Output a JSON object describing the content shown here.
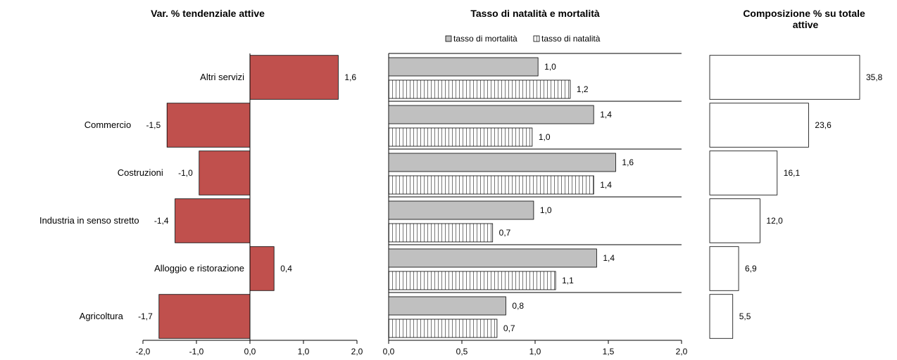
{
  "chart_data": [
    {
      "type": "bar",
      "orientation": "horizontal",
      "title": "Var. % tendenziale attive",
      "categories": [
        "Altri servizi",
        "Commercio",
        "Costruzioni",
        "Industria in senso stretto",
        "Alloggio e ristorazione",
        "Agricoltura"
      ],
      "values": [
        1.65,
        -1.55,
        -0.95,
        -1.4,
        0.45,
        -1.7
      ],
      "value_labels": [
        "1,6",
        "-1,5",
        "-1,0",
        "-1,4",
        "0,4",
        "-1,7"
      ],
      "xlim": [
        -2.0,
        2.0
      ],
      "ticks": [
        -2.0,
        -1.0,
        0.0,
        1.0,
        2.0
      ],
      "tick_labels": [
        "-2,0",
        "-1,0",
        "0,0",
        "1,0",
        "2,0"
      ],
      "grid": false,
      "color": "#c0504d"
    },
    {
      "type": "bar",
      "orientation": "horizontal",
      "title": "Tasso di natalità e mortalità",
      "categories": [
        "Altri servizi",
        "Commercio",
        "Costruzioni",
        "Industria in senso stretto",
        "Alloggio e ristorazione",
        "Agricoltura"
      ],
      "series": [
        {
          "name": "tasso di mortalità",
          "values": [
            1.02,
            1.4,
            1.55,
            0.99,
            1.42,
            0.8
          ],
          "labels": [
            "1,0",
            "1,4",
            "1,6",
            "1,0",
            "1,4",
            "0,8"
          ],
          "fill": "#c0c0c0"
        },
        {
          "name": "tasso di natalità",
          "values": [
            1.24,
            0.98,
            1.4,
            0.71,
            1.14,
            0.74
          ],
          "labels": [
            "1,2",
            "1,0",
            "1,4",
            "0,7",
            "1,1",
            "0,7"
          ],
          "fill": "vertical-stripes"
        }
      ],
      "xlim": [
        0.0,
        2.0
      ],
      "ticks": [
        0.0,
        0.5,
        1.0,
        1.5,
        2.0
      ],
      "tick_labels": [
        "0,0",
        "0,5",
        "1,0",
        "1,5",
        "2,0"
      ],
      "legend": "top",
      "grid": "horizontal category separators"
    },
    {
      "type": "bar",
      "orientation": "horizontal",
      "title": "Composizione % su totale attive",
      "categories": [
        "Altri servizi",
        "Commercio",
        "Costruzioni",
        "Industria in senso stretto",
        "Alloggio e ristorazione",
        "Agricoltura"
      ],
      "values": [
        35.8,
        23.6,
        16.1,
        12.0,
        6.9,
        5.5
      ],
      "value_labels": [
        "35,8",
        "23,6",
        "16,1",
        "12,0",
        "6,9",
        "5,5"
      ],
      "xlim": [
        0,
        40
      ],
      "grid": false,
      "color": "#ffffff"
    }
  ]
}
